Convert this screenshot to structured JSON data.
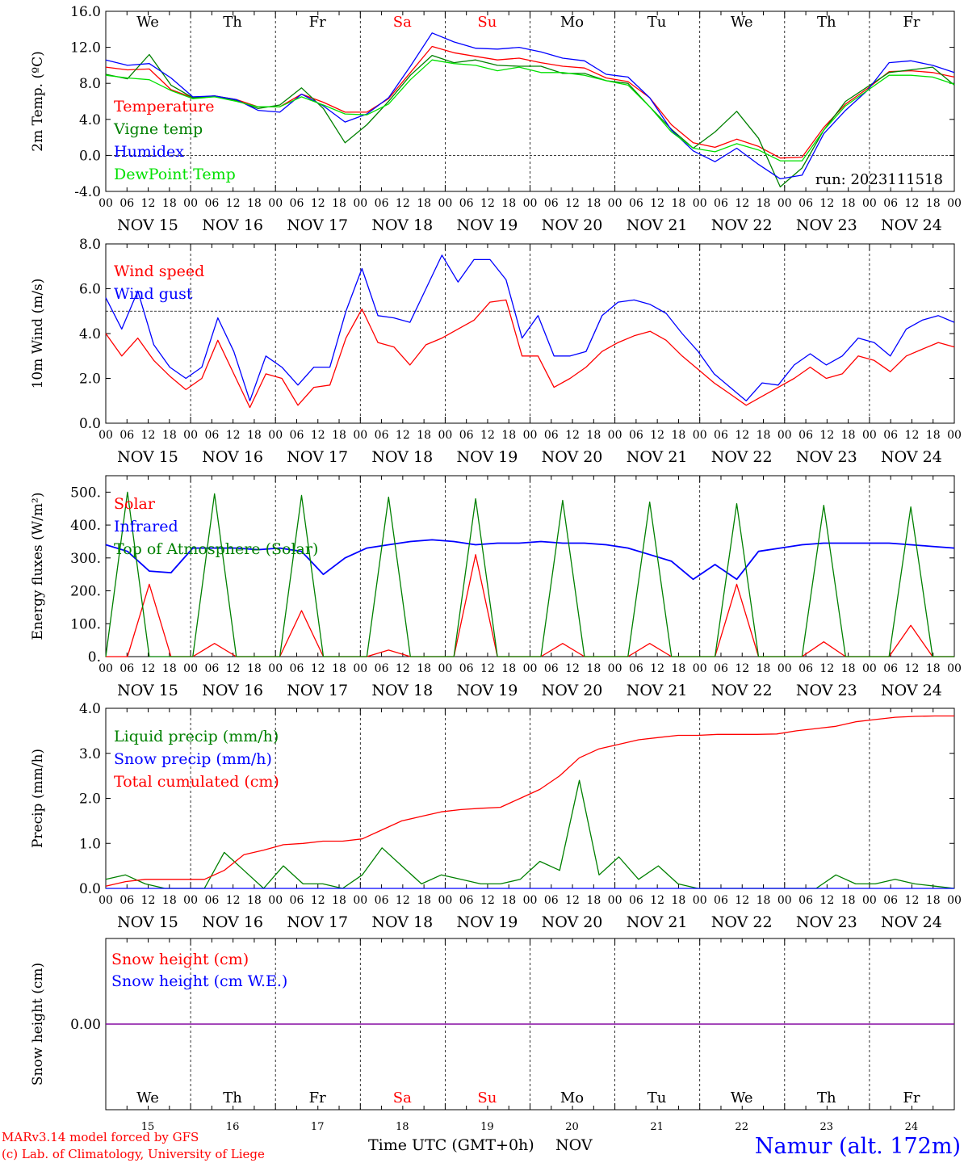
{
  "days": {
    "weekdays": [
      "We",
      "Th",
      "Fr",
      "Sa",
      "Su",
      "Mo",
      "Tu",
      "We",
      "Th",
      "Fr"
    ],
    "weekday_colors": [
      "#000000",
      "#000000",
      "#000000",
      "#ff0000",
      "#ff0000",
      "#000000",
      "#000000",
      "#000000",
      "#000000",
      "#000000"
    ],
    "dates": [
      "NOV 15",
      "NOV 16",
      "NOV 17",
      "NOV 18",
      "NOV 19",
      "NOV 20",
      "NOV 21",
      "NOV 22",
      "NOV 23",
      "NOV 24"
    ],
    "day_numbers": [
      "15",
      "16",
      "17",
      "18",
      "19",
      "20",
      "21",
      "22",
      "23",
      "24"
    ],
    "hour_ticks": [
      "00",
      "06",
      "12",
      "18"
    ],
    "final_tick": "00"
  },
  "footer": {
    "model_line": "MARv3.14 model forced by GFS",
    "lab_line": "(c) Lab. of Climatology, University of Liege",
    "time_axis_label": "Time UTC (GMT+0h)",
    "month_label": "NOV",
    "station_label": "Namur (alt. 172m)"
  },
  "colors": {
    "red": "#ff0000",
    "green": "#008000",
    "blue": "#0000ff",
    "light_green": "#00e000",
    "purple": "#8000a0"
  },
  "chart_data": [
    {
      "type": "line",
      "ylabel": "2m Temp. (ºC)",
      "ylim": [
        -4,
        16
      ],
      "yticks": [
        "16.0",
        "12.0",
        "8.0",
        "4.0",
        "0.0",
        "-4.0"
      ],
      "yticks_values": [
        16,
        12,
        8,
        4,
        0,
        -4
      ],
      "reference_line": 0,
      "annotation": "run: 2023111518",
      "x_hours_step": 6,
      "series": [
        {
          "name": "Temperature",
          "color": "red",
          "values": [
            9.8,
            9.5,
            9.6,
            7.3,
            6.4,
            6.6,
            6.2,
            5.4,
            5.4,
            6.8,
            5.9,
            4.8,
            4.8,
            6.3,
            9.2,
            12.1,
            11.4,
            11.0,
            10.6,
            10.8,
            10.3,
            9.9,
            9.7,
            8.6,
            8.2,
            6.4,
            3.4,
            1.4,
            0.9,
            1.8,
            1.0,
            -0.3,
            -0.2,
            3.1,
            5.7,
            7.4,
            9.3,
            9.4,
            9.2,
            8.7
          ]
        },
        {
          "name": "Vigne temp",
          "color": "green",
          "values": [
            9.0,
            8.5,
            11.2,
            7.8,
            6.4,
            6.6,
            6.1,
            5.2,
            5.6,
            7.5,
            5.2,
            1.4,
            3.4,
            6.0,
            8.9,
            11.1,
            10.3,
            10.6,
            10.0,
            9.9,
            9.9,
            9.1,
            9.1,
            8.3,
            8.0,
            5.4,
            2.9,
            0.8,
            2.6,
            4.9,
            1.9,
            -3.5,
            -1.4,
            2.8,
            6.0,
            7.6,
            9.2,
            9.5,
            9.8,
            7.8
          ]
        },
        {
          "name": "Humidex",
          "color": "blue",
          "values": [
            10.6,
            10.0,
            10.2,
            8.6,
            6.5,
            6.6,
            6.2,
            5.0,
            4.8,
            6.8,
            5.5,
            3.7,
            4.6,
            6.4,
            9.9,
            13.6,
            12.6,
            11.9,
            11.8,
            12.0,
            11.5,
            10.8,
            10.5,
            9.0,
            8.7,
            6.4,
            2.8,
            0.5,
            -0.7,
            0.8,
            -1.0,
            -2.6,
            -2.2,
            2.4,
            5.0,
            7.2,
            10.3,
            10.5,
            10.0,
            9.2
          ]
        },
        {
          "name": "DewPoint Temp",
          "color": "light_green",
          "values": [
            8.9,
            8.6,
            8.4,
            7.2,
            6.3,
            6.5,
            6.0,
            5.4,
            5.4,
            6.5,
            5.6,
            4.6,
            4.5,
            5.7,
            8.4,
            10.6,
            10.2,
            10.0,
            9.4,
            9.8,
            9.2,
            9.2,
            8.9,
            8.3,
            7.8,
            5.4,
            2.6,
            0.8,
            0.4,
            1.3,
            0.6,
            -0.6,
            -0.6,
            2.8,
            5.5,
            7.2,
            8.9,
            8.9,
            8.7,
            7.9
          ]
        }
      ]
    },
    {
      "type": "line",
      "ylabel": "10m Wind (m/s)",
      "ylim": [
        0,
        8
      ],
      "yticks": [
        "8.0",
        "6.0",
        "4.0",
        "2.0",
        "0.0"
      ],
      "yticks_values": [
        8,
        6,
        4,
        2,
        0
      ],
      "reference_line": 5,
      "x_hours_step": 6,
      "series": [
        {
          "name": "Wind speed",
          "color": "red",
          "values": [
            4.0,
            3.0,
            3.8,
            2.8,
            2.1,
            1.5,
            2.0,
            3.7,
            2.2,
            0.7,
            2.2,
            2.0,
            0.8,
            1.6,
            1.7,
            3.8,
            5.1,
            3.6,
            3.4,
            2.6,
            3.5,
            3.8,
            4.2,
            4.6,
            5.4,
            5.5,
            3.0,
            3.0,
            1.6,
            2.0,
            2.5,
            3.2,
            3.6,
            3.9,
            4.1,
            3.7,
            3.0,
            2.4,
            1.8,
            1.3,
            0.8,
            1.2,
            1.6,
            2.0,
            2.5,
            2.0,
            2.2,
            3.0,
            2.8,
            2.3,
            3.0,
            3.3,
            3.6,
            3.4
          ]
        },
        {
          "name": "Wind gust",
          "color": "blue",
          "values": [
            5.6,
            4.2,
            5.9,
            3.5,
            2.5,
            2.0,
            2.5,
            4.7,
            3.2,
            1.0,
            3.0,
            2.5,
            1.7,
            2.5,
            2.5,
            5.0,
            6.9,
            4.8,
            4.7,
            4.5,
            6.0,
            7.5,
            6.3,
            7.3,
            7.3,
            6.4,
            3.8,
            4.8,
            3.0,
            3.0,
            3.2,
            4.8,
            5.4,
            5.5,
            5.3,
            4.9,
            4.0,
            3.2,
            2.2,
            1.6,
            1.0,
            1.8,
            1.7,
            2.6,
            3.1,
            2.6,
            3.0,
            3.8,
            3.6,
            3.0,
            4.2,
            4.6,
            4.8,
            4.5
          ]
        }
      ]
    },
    {
      "type": "line",
      "ylabel": "Energy fluxes (W/m²)",
      "ylim": [
        0,
        550
      ],
      "yticks": [
        "500.",
        "400.",
        "300.",
        "200.",
        "100.",
        "0."
      ],
      "yticks_values": [
        500,
        400,
        300,
        200,
        100,
        0
      ],
      "x_hours_step": 6,
      "series": [
        {
          "name": "Solar",
          "color": "red",
          "values": [
            0,
            0,
            220,
            0,
            0,
            40,
            0,
            0,
            0,
            140,
            0,
            0,
            0,
            20,
            0,
            0,
            0,
            310,
            0,
            0,
            0,
            40,
            0,
            0,
            0,
            40,
            0,
            0,
            0,
            220,
            0,
            0,
            0,
            45,
            0,
            0,
            0,
            95,
            0,
            0
          ]
        },
        {
          "name": "Infrared",
          "color": "blue",
          "values": [
            340,
            320,
            260,
            255,
            330,
            330,
            330,
            325,
            330,
            320,
            250,
            300,
            330,
            340,
            350,
            355,
            350,
            340,
            345,
            345,
            350,
            345,
            345,
            340,
            330,
            310,
            290,
            235,
            280,
            235,
            320,
            330,
            340,
            345,
            345,
            345,
            345,
            340,
            335,
            330
          ]
        },
        {
          "name": "Top of Atmosphere (Solar)",
          "color": "green",
          "values": [
            0,
            500,
            0,
            0,
            0,
            495,
            0,
            0,
            0,
            490,
            0,
            0,
            0,
            485,
            0,
            0,
            0,
            480,
            0,
            0,
            0,
            475,
            0,
            0,
            0,
            470,
            0,
            0,
            0,
            465,
            0,
            0,
            0,
            460,
            0,
            0,
            0,
            455,
            0,
            0
          ]
        }
      ]
    },
    {
      "type": "line",
      "ylabel": "Precip (mm/h)",
      "ylim": [
        0,
        4
      ],
      "yticks": [
        "4.0",
        "3.0",
        "2.0",
        "1.0",
        "0.0"
      ],
      "yticks_values": [
        4,
        3,
        2,
        1,
        0
      ],
      "x_hours_step": 6,
      "series": [
        {
          "name": "Liquid precip (mm/h)",
          "color": "green",
          "values": [
            0.2,
            0.3,
            0.1,
            0.0,
            0.0,
            0.0,
            0.8,
            0.4,
            0.0,
            0.5,
            0.1,
            0.1,
            0.0,
            0.3,
            0.9,
            0.5,
            0.1,
            0.3,
            0.2,
            0.1,
            0.1,
            0.2,
            0.6,
            0.4,
            2.4,
            0.3,
            0.7,
            0.2,
            0.5,
            0.1,
            0.0,
            0.0,
            0.0,
            0.0,
            0.0,
            0.0,
            0.0,
            0.3,
            0.1,
            0.1,
            0.2,
            0.1,
            0.05,
            0.0
          ]
        },
        {
          "name": "Snow precip (mm/h)",
          "color": "blue",
          "values": [
            0,
            0,
            0,
            0,
            0,
            0,
            0,
            0,
            0,
            0,
            0,
            0,
            0,
            0,
            0,
            0,
            0,
            0,
            0,
            0,
            0,
            0,
            0,
            0,
            0,
            0,
            0,
            0,
            0,
            0,
            0,
            0,
            0,
            0,
            0,
            0,
            0,
            0,
            0,
            0,
            0,
            0,
            0,
            0
          ]
        },
        {
          "name": "Total cumulated (cm)",
          "color": "red",
          "values": [
            0.05,
            0.15,
            0.2,
            0.2,
            0.2,
            0.2,
            0.4,
            0.75,
            0.85,
            0.97,
            1.0,
            1.05,
            1.05,
            1.1,
            1.3,
            1.5,
            1.6,
            1.7,
            1.75,
            1.78,
            1.8,
            2.0,
            2.2,
            2.5,
            2.9,
            3.1,
            3.2,
            3.3,
            3.35,
            3.4,
            3.4,
            3.42,
            3.42,
            3.42,
            3.43,
            3.5,
            3.55,
            3.6,
            3.7,
            3.75,
            3.8,
            3.82,
            3.83,
            3.83
          ]
        }
      ]
    },
    {
      "type": "line",
      "ylabel": "Snow height (cm)",
      "ylim": [
        -1,
        1
      ],
      "yticks": [
        "0.00"
      ],
      "yticks_values": [
        0
      ],
      "x_hours_step": 6,
      "series": [
        {
          "name": "Snow height (cm)",
          "color": "red",
          "values": [
            0,
            0
          ]
        },
        {
          "name": "Snow height (cm W.E.)",
          "color": "blue",
          "values": [
            0,
            0
          ]
        }
      ]
    }
  ]
}
